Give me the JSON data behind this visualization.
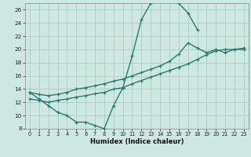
{
  "title": "",
  "xlabel": "Humidex (Indice chaleur)",
  "ylabel": "",
  "bg_color": "#cce8e0",
  "grid_color": "#b0d0c8",
  "line_color": "#2a7d6f",
  "xlim": [
    -0.5,
    23.5
  ],
  "ylim": [
    8,
    27
  ],
  "xticks": [
    0,
    1,
    2,
    3,
    4,
    5,
    6,
    7,
    8,
    9,
    10,
    11,
    12,
    13,
    14,
    15,
    16,
    17,
    18,
    19,
    20,
    21,
    22,
    23
  ],
  "yticks": [
    8,
    10,
    12,
    14,
    16,
    18,
    20,
    22,
    24,
    26
  ],
  "curve1_x": [
    0,
    1,
    2,
    3,
    4,
    5,
    6,
    7,
    8,
    9,
    10,
    11,
    12,
    13,
    14,
    15,
    16,
    17,
    18
  ],
  "curve1_y": [
    13.5,
    12.5,
    11.5,
    10.5,
    10.0,
    9.0,
    9.0,
    8.5,
    8.0,
    11.5,
    14.2,
    19.0,
    24.5,
    27.0,
    27.3,
    27.3,
    27.0,
    25.5,
    23.0
  ],
  "curve2_x": [
    0,
    1,
    2,
    3,
    4,
    5,
    6,
    7,
    8,
    9,
    10,
    11,
    12,
    13,
    14,
    15,
    16,
    17,
    18,
    19,
    20,
    21,
    22,
    23
  ],
  "curve2_y": [
    13.5,
    13.2,
    13.0,
    13.2,
    13.5,
    14.0,
    14.2,
    14.5,
    14.8,
    15.2,
    15.5,
    16.0,
    16.5,
    17.0,
    17.5,
    18.2,
    19.3,
    21.0,
    20.2,
    19.5,
    20.0,
    19.5,
    20.0,
    20.0
  ],
  "curve3_x": [
    0,
    1,
    2,
    3,
    4,
    5,
    6,
    7,
    8,
    9,
    10,
    11,
    12,
    13,
    14,
    15,
    16,
    17,
    18,
    19,
    20,
    21,
    22,
    23
  ],
  "curve3_y": [
    12.5,
    12.3,
    12.0,
    12.3,
    12.5,
    12.8,
    13.0,
    13.3,
    13.5,
    14.0,
    14.2,
    14.8,
    15.3,
    15.8,
    16.3,
    16.8,
    17.3,
    17.8,
    18.5,
    19.2,
    19.8,
    20.0,
    20.0,
    20.2
  ],
  "marker": "+",
  "markersize": 3.5,
  "linewidth": 1.0
}
